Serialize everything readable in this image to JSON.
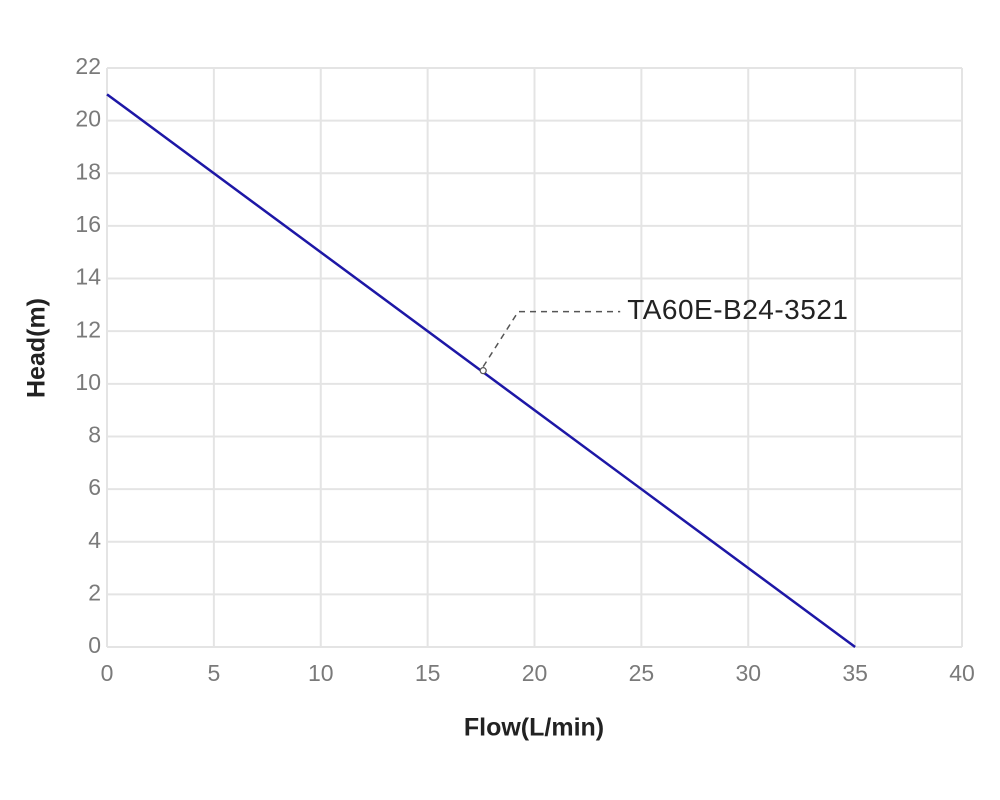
{
  "chart_data": {
    "type": "line",
    "xlabel": "Flow(L/min)",
    "ylabel": "Head(m)",
    "x": [
      0,
      35
    ],
    "series": [
      {
        "name": "TA60E-B24-3521",
        "color": "#1d17a6",
        "values": [
          21,
          0
        ]
      }
    ],
    "annotations": [
      {
        "text": "TA60E-B24-3521",
        "x": 17.6,
        "y": 10.5
      }
    ],
    "xlim": [
      0,
      40
    ],
    "xticks": [
      0,
      5,
      10,
      15,
      20,
      25,
      30,
      35,
      40
    ],
    "ylim": [
      0,
      22
    ],
    "yticks": [
      0,
      2,
      4,
      6,
      8,
      10,
      12,
      14,
      16,
      18,
      20,
      22
    ],
    "grid": true
  }
}
